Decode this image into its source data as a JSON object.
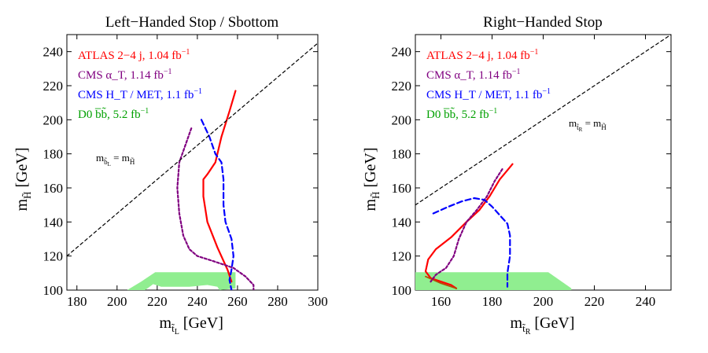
{
  "chart_data": [
    {
      "type": "line",
      "title": "Left−Handed Stop / Sbottom",
      "xlabel": "m",
      "xlabel_sub": "t̃",
      "xlabel_subsub": "L",
      "xlabel_unit": "[GeV]",
      "ylabel": "m",
      "ylabel_sub": "H̃",
      "ylabel_unit": "[GeV]",
      "xlim": [
        175,
        300
      ],
      "ylim": [
        100,
        250
      ],
      "xticks": [
        "180",
        "200",
        "220",
        "240",
        "260",
        "280",
        "300"
      ],
      "xtick_values": [
        180,
        200,
        220,
        240,
        260,
        280,
        300
      ],
      "yticks": [
        "100",
        "120",
        "140",
        "160",
        "180",
        "200",
        "220",
        "240"
      ],
      "ytick_values": [
        100,
        120,
        140,
        160,
        180,
        200,
        220,
        240
      ],
      "legend": [
        {
          "text": "ATLAS 2−4 j,  1.04 fb",
          "sup": "−1",
          "color": "#ff0000"
        },
        {
          "text": "CMS α_T,  1.14 fb",
          "sup": "−1",
          "color": "#800080"
        },
        {
          "text": "CMS H_T / MET,  1.1 fb",
          "sup": "−1",
          "color": "#0000ff"
        },
        {
          "text": "D0 b̅b̃,  5.2 fb",
          "sup": "−1",
          "color": "#00a000"
        }
      ],
      "diagonal_label": "m",
      "diagonal_label_sub": "b̃",
      "diagonal_label_subsub": "L",
      "diagonal_label_eq": " = m",
      "diagonal_label_sub2": "H̃",
      "series": [
        {
          "name": "ATLAS 2−4 j",
          "color": "#ff0000",
          "dash": "",
          "width": 2.2,
          "x": [
            259,
            256,
            252,
            249,
            245,
            243,
            243,
            245,
            250,
            255,
            257
          ],
          "y": [
            217,
            205,
            190,
            175,
            168,
            165,
            155,
            140,
            125,
            112,
            105
          ]
        },
        {
          "name": "CMS α_T",
          "color": "#800080",
          "dash": "3,2.5",
          "width": 2.2,
          "x": [
            237,
            234,
            231,
            230,
            231,
            233,
            236,
            240,
            248,
            258,
            264,
            268,
            268
          ],
          "y": [
            195,
            185,
            175,
            160,
            145,
            132,
            124,
            120,
            117,
            113,
            108,
            103,
            100
          ]
        },
        {
          "name": "CMS H_T / MET",
          "color": "#0000ff",
          "dash": "7,4",
          "width": 2.2,
          "x": [
            242,
            246,
            249,
            252,
            253,
            253,
            254,
            257,
            258,
            257,
            256,
            257
          ],
          "y": [
            200,
            190,
            180,
            175,
            165,
            150,
            140,
            130,
            120,
            112,
            106,
            100
          ]
        },
        {
          "name": "D0 b̅b̃",
          "color": "#90ee90",
          "fill": true,
          "x": [
            205,
            212,
            219,
            259,
            259,
            251,
            250,
            245,
            236,
            222,
            218,
            214,
            205
          ],
          "y": [
            100,
            105,
            110.5,
            110.5,
            101,
            100,
            102,
            103,
            102,
            102,
            103.5,
            100,
            100
          ]
        },
        {
          "name": "kinematic boundary",
          "color": "#000000",
          "dash": "4,3.5",
          "width": 1.2,
          "x": [
            175,
            305
          ],
          "y": [
            120,
            250
          ]
        }
      ]
    },
    {
      "type": "line",
      "title": "Right−Handed Stop",
      "xlabel": "m",
      "xlabel_sub": "t̃",
      "xlabel_subsub": "R",
      "xlabel_unit": "[GeV]",
      "ylabel": "m",
      "ylabel_sub": "H̃",
      "ylabel_unit": "[GeV]",
      "xlim": [
        150,
        250
      ],
      "ylim": [
        100,
        250
      ],
      "xticks": [
        "160",
        "180",
        "200",
        "220",
        "240"
      ],
      "xtick_values": [
        160,
        180,
        200,
        220,
        240
      ],
      "yticks": [
        "100",
        "120",
        "140",
        "160",
        "180",
        "200",
        "220",
        "240"
      ],
      "ytick_values": [
        100,
        120,
        140,
        160,
        180,
        200,
        220,
        240
      ],
      "legend": [
        {
          "text": "ATLAS 2−4 j,  1.04 fb",
          "sup": "−1",
          "color": "#ff0000"
        },
        {
          "text": "CMS α_T,  1.14 fb",
          "sup": "−1",
          "color": "#800080"
        },
        {
          "text": "CMS H_T / MET,  1.1 fb",
          "sup": "−1",
          "color": "#0000ff"
        },
        {
          "text": "D0 b̅b̃,  5.2 fb",
          "sup": "−1",
          "color": "#00a000"
        }
      ],
      "diagonal_label": "m",
      "diagonal_label_sub": "t̃",
      "diagonal_label_subsub": "R",
      "diagonal_label_eq": " = m",
      "diagonal_label_sub2": "H̃",
      "series": [
        {
          "name": "ATLAS 2−4 j",
          "color": "#ff0000",
          "dash": "",
          "width": 2.2,
          "x": [
            188,
            183,
            179,
            175,
            170,
            164,
            158,
            155,
            154,
            156,
            160,
            164,
            166
          ],
          "y": [
            174,
            165,
            155,
            147,
            140,
            131,
            124,
            118,
            111,
            107,
            105,
            103,
            101
          ]
        },
        {
          "name": "D0 curve (lower)",
          "color": "#b05000",
          "dash": "",
          "width": 1.8,
          "x": [
            154,
            160,
            166
          ],
          "y": [
            108,
            104,
            101
          ]
        },
        {
          "name": "CMS α_T",
          "color": "#800080",
          "dash": "3,2.5",
          "width": 2.2,
          "x": [
            184,
            181,
            178,
            174,
            170,
            167,
            165,
            162,
            158,
            156
          ],
          "y": [
            171,
            164,
            155,
            147,
            140,
            130,
            120,
            113,
            109,
            105
          ]
        },
        {
          "name": "CMS H_T / MET",
          "color": "#0000ff",
          "dash": "7,4",
          "width": 2.2,
          "x": [
            157,
            163,
            168,
            173,
            177,
            180,
            183,
            186,
            187,
            187,
            186,
            186
          ],
          "y": [
            145,
            149,
            152,
            154,
            153,
            149,
            144,
            139,
            132,
            120,
            110,
            102
          ]
        },
        {
          "name": "D0 b̅b̃",
          "color": "#90ee90",
          "fill": true,
          "x": [
            150,
            150,
            202,
            211,
            211,
            150
          ],
          "y": [
            100,
            110.5,
            110.5,
            101,
            100,
            100
          ]
        },
        {
          "name": "kinematic boundary",
          "color": "#000000",
          "dash": "4,3.5",
          "width": 1.2,
          "x": [
            150,
            250
          ],
          "y": [
            150,
            250
          ]
        }
      ]
    }
  ]
}
